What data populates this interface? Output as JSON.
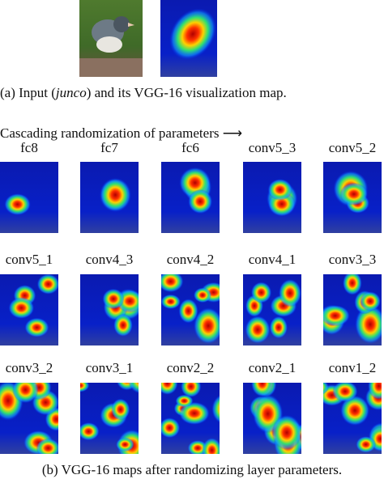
{
  "figure": {
    "caption_a": {
      "before": "(a) Input (",
      "italic": "junco",
      "after": ") and its VGG-16 visualization map."
    },
    "cascade_title": "Cascading randomization of parameters ⟶",
    "rows": [
      [
        "fc8",
        "fc7",
        "fc6",
        "conv5_3",
        "conv5_2"
      ],
      [
        "conv5_1",
        "conv4_3",
        "conv4_2",
        "conv4_1",
        "conv3_3"
      ],
      [
        "conv3_2",
        "conv3_1",
        "conv2_2",
        "conv2_1",
        "conv1_2"
      ]
    ],
    "caption_b": "(b) VGG-16 maps after randomizing layer parameters."
  }
}
